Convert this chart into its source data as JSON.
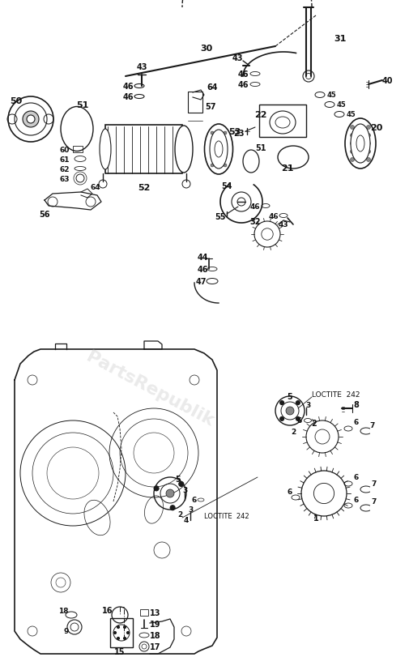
{
  "bg_color": "#ffffff",
  "line_color": "#1a1a1a",
  "label_color": "#111111",
  "watermark_color": "#bbbbbb",
  "watermark_text": "PartsRepublik",
  "watermark_alpha": 0.3,
  "fig_width": 5.05,
  "fig_height": 8.28,
  "dpi": 100
}
